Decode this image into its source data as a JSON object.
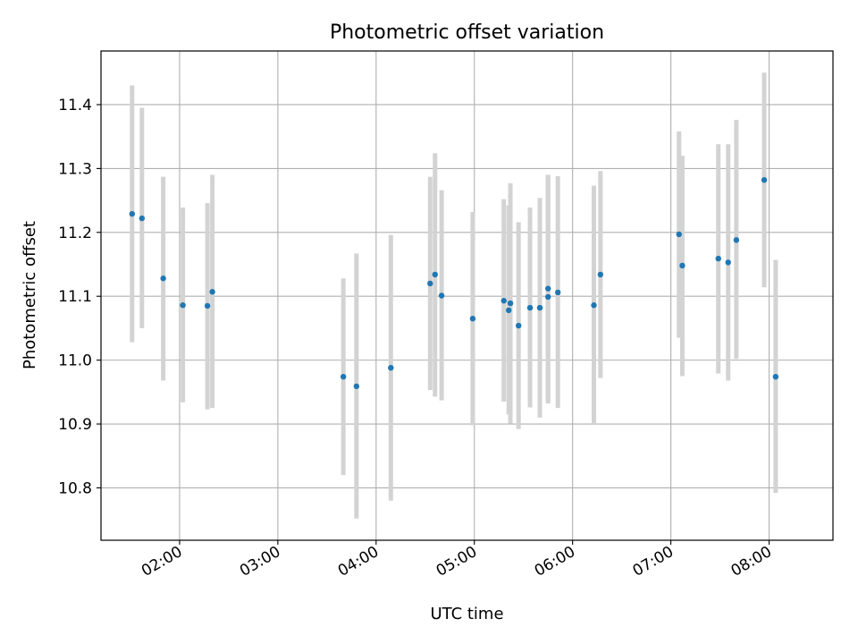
{
  "chart_data": {
    "type": "scatter",
    "title": "Photometric offset variation",
    "xlabel": "UTC time",
    "ylabel": "Photometric offset",
    "x_unit": "UTC time (HH:MM)",
    "xlim": [
      "01:12",
      "08:39"
    ],
    "ylim": [
      10.718,
      11.484
    ],
    "xticks": [
      "02:00",
      "03:00",
      "04:00",
      "05:00",
      "06:00",
      "07:00",
      "08:00"
    ],
    "yticks": [
      10.8,
      10.9,
      11.0,
      11.1,
      11.2,
      11.3,
      11.4
    ],
    "ytick_labels": [
      "10.8",
      "10.9",
      "11.0",
      "11.1",
      "11.2",
      "11.3",
      "11.4"
    ],
    "grid": true,
    "legend": false,
    "colors": {
      "points": "#1f77b4",
      "errorbars": "#d3d3d3",
      "grid": "#b0b0b0"
    },
    "points": [
      {
        "x": "01:31",
        "y": 11.229,
        "lo": 11.028,
        "hi": 11.43
      },
      {
        "x": "01:37",
        "y": 11.222,
        "lo": 11.05,
        "hi": 11.395
      },
      {
        "x": "01:50",
        "y": 11.128,
        "lo": 10.968,
        "hi": 11.287
      },
      {
        "x": "02:02",
        "y": 11.086,
        "lo": 10.934,
        "hi": 11.239
      },
      {
        "x": "02:17",
        "y": 11.085,
        "lo": 10.923,
        "hi": 11.246
      },
      {
        "x": "02:20",
        "y": 11.107,
        "lo": 10.925,
        "hi": 11.29
      },
      {
        "x": "03:40",
        "y": 10.974,
        "lo": 10.82,
        "hi": 11.128
      },
      {
        "x": "03:48",
        "y": 10.959,
        "lo": 10.752,
        "hi": 11.167
      },
      {
        "x": "04:09",
        "y": 10.988,
        "lo": 10.78,
        "hi": 11.196
      },
      {
        "x": "04:33",
        "y": 11.12,
        "lo": 10.953,
        "hi": 11.287
      },
      {
        "x": "04:36",
        "y": 11.134,
        "lo": 10.943,
        "hi": 11.324
      },
      {
        "x": "04:40",
        "y": 11.101,
        "lo": 10.937,
        "hi": 11.266
      },
      {
        "x": "04:59",
        "y": 11.065,
        "lo": 10.898,
        "hi": 11.232
      },
      {
        "x": "05:18",
        "y": 11.093,
        "lo": 10.935,
        "hi": 11.252
      },
      {
        "x": "05:21",
        "y": 11.078,
        "lo": 10.915,
        "hi": 11.242
      },
      {
        "x": "05:22",
        "y": 11.089,
        "lo": 10.901,
        "hi": 11.277
      },
      {
        "x": "05:27",
        "y": 11.054,
        "lo": 10.892,
        "hi": 11.216
      },
      {
        "x": "05:34",
        "y": 11.082,
        "lo": 10.926,
        "hi": 11.239
      },
      {
        "x": "05:40",
        "y": 11.082,
        "lo": 10.91,
        "hi": 11.254
      },
      {
        "x": "05:45",
        "y": 11.099,
        "lo": 10.932,
        "hi": 11.29
      },
      {
        "x": "05:45",
        "y": 11.112,
        "lo": 10.935,
        "hi": 11.29
      },
      {
        "x": "05:51",
        "y": 11.106,
        "lo": 10.925,
        "hi": 11.288
      },
      {
        "x": "06:13",
        "y": 11.086,
        "lo": 10.9,
        "hi": 11.273
      },
      {
        "x": "06:17",
        "y": 11.134,
        "lo": 10.972,
        "hi": 11.296
      },
      {
        "x": "07:05",
        "y": 11.197,
        "lo": 11.035,
        "hi": 11.358
      },
      {
        "x": "07:07",
        "y": 11.148,
        "lo": 10.975,
        "hi": 11.32
      },
      {
        "x": "07:29",
        "y": 11.159,
        "lo": 10.979,
        "hi": 11.338
      },
      {
        "x": "07:35",
        "y": 11.153,
        "lo": 10.968,
        "hi": 11.338
      },
      {
        "x": "07:40",
        "y": 11.188,
        "lo": 11.002,
        "hi": 11.376
      },
      {
        "x": "07:57",
        "y": 11.282,
        "lo": 11.114,
        "hi": 11.45
      },
      {
        "x": "08:04",
        "y": 10.974,
        "lo": 10.792,
        "hi": 11.157
      }
    ]
  }
}
